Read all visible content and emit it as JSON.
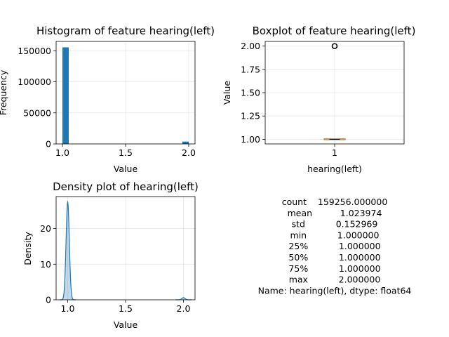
{
  "figure": {
    "stats_lines": [
      "count    159256.000000",
      "mean          1.023974",
      "std           0.152969",
      "min           1.000000",
      "25%           1.000000",
      "50%           1.000000",
      "75%           1.000000",
      "max           2.000000",
      "Name: hearing(left), dtype: float64"
    ]
  },
  "chart_data": [
    {
      "type": "bar",
      "title": "Histogram of feature hearing(left)",
      "xlabel": "Value",
      "ylabel": "Frequency",
      "xlim": [
        0.95,
        2.05
      ],
      "ylim": [
        0,
        165000
      ],
      "xticks": [
        1.0,
        1.5,
        2.0
      ],
      "xtick_labels": [
        "1.0",
        "1.5",
        "2.0"
      ],
      "yticks": [
        0,
        50000,
        100000,
        150000
      ],
      "ytick_labels": [
        "0",
        "50000",
        "100000",
        "150000"
      ],
      "grid": true,
      "color": "#1f77b4",
      "bins": [
        {
          "x0": 1.0,
          "x1": 1.05,
          "value": 155440
        },
        {
          "x0": 1.95,
          "x1": 2.0,
          "value": 3816
        }
      ]
    },
    {
      "type": "box",
      "title": "Boxplot of feature hearing(left)",
      "xlabel": "hearing(left)",
      "ylabel": "Value",
      "categories": [
        "1"
      ],
      "ylim": [
        0.95,
        2.05
      ],
      "yticks": [
        1.0,
        1.25,
        1.5,
        1.75,
        2.0
      ],
      "ytick_labels": [
        "1.00",
        "1.25",
        "1.50",
        "1.75",
        "2.00"
      ],
      "grid": true,
      "q1": 1.0,
      "median": 1.0,
      "q3": 1.0,
      "whisker_low": 1.0,
      "whisker_high": 1.0,
      "outliers": [
        2.0
      ],
      "median_color": "#ff7f0e"
    },
    {
      "type": "area",
      "title": "Density plot of hearing(left)",
      "xlabel": "Value",
      "ylabel": "Density",
      "xlim": [
        0.9,
        2.1
      ],
      "ylim": [
        0,
        29
      ],
      "xticks": [
        1.0,
        1.5,
        2.0
      ],
      "xtick_labels": [
        "1.0",
        "1.5",
        "2.0"
      ],
      "yticks": [
        0,
        10,
        20
      ],
      "ytick_labels": [
        "0",
        "10",
        "20"
      ],
      "grid": true,
      "color": "#1f77b4",
      "peaks": [
        {
          "center": 1.0,
          "height": 27.5,
          "sigma": 0.014
        },
        {
          "center": 2.0,
          "height": 0.6,
          "sigma": 0.014
        }
      ]
    }
  ]
}
